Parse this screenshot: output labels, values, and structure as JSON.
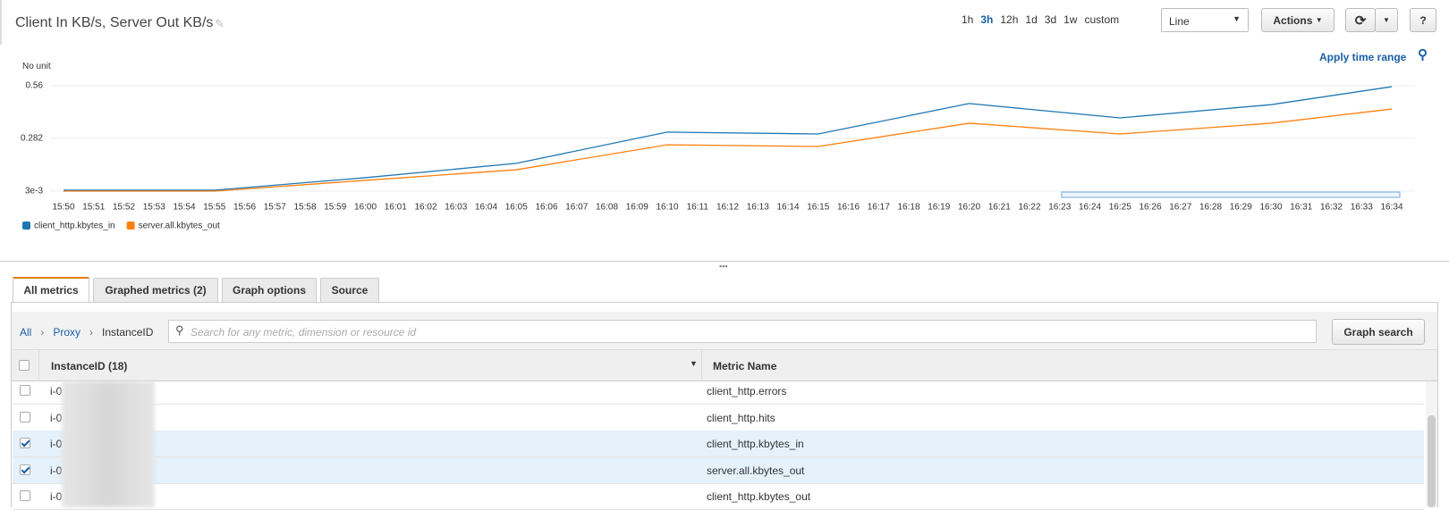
{
  "header": {
    "title": "Client In KB/s, Server Out KB/s",
    "ranges": [
      "1h",
      "3h",
      "12h",
      "1d",
      "3d",
      "1w",
      "custom"
    ],
    "active_range": 1,
    "view": "Line",
    "actions": "Actions",
    "help": "?"
  },
  "chart_data": {
    "type": "line",
    "ylabel": "No unit",
    "apply": "Apply time range",
    "categories": [
      "15:50",
      "15:51",
      "15:52",
      "15:53",
      "15:54",
      "15:55",
      "15:56",
      "15:57",
      "15:58",
      "15:59",
      "16:00",
      "16:01",
      "16:02",
      "16:03",
      "16:04",
      "16:05",
      "16:06",
      "16:07",
      "16:08",
      "16:09",
      "16:10",
      "16:11",
      "16:12",
      "16:13",
      "16:14",
      "16:15",
      "16:16",
      "16:17",
      "16:18",
      "16:19",
      "16:20",
      "16:21",
      "16:22",
      "16:23",
      "16:24",
      "16:25",
      "16:26",
      "16:27",
      "16:28",
      "16:29",
      "16:30",
      "16:31",
      "16:32",
      "16:33",
      "16:34"
    ],
    "x": [
      "15:50",
      "15:55",
      "16:00",
      "16:05",
      "16:10",
      "16:15",
      "16:20",
      "16:25",
      "16:30",
      "16:34"
    ],
    "series": [
      {
        "name": "client_http.kbytes_in",
        "color": "#1f77b4",
        "values": [
          0.008,
          0.008,
          0.074,
          0.15,
          0.315,
          0.305,
          0.466,
          0.39,
          0.46,
          0.555
        ]
      },
      {
        "name": "server.all.kbytes_out",
        "color": "#ff7f0e",
        "values": [
          0.003,
          0.003,
          0.06,
          0.116,
          0.248,
          0.239,
          0.362,
          0.305,
          0.362,
          0.437
        ]
      }
    ],
    "ylim": [
      0.003,
      0.56
    ],
    "yticks": [
      {
        "value": 0.003,
        "label": "3e-3"
      },
      0.282,
      0.56
    ],
    "grid": true
  },
  "tabs": [
    "All metrics",
    "Graphed metrics (2)",
    "Graph options",
    "Source"
  ],
  "breadcrumb": [
    "All",
    "Proxy",
    "InstanceID"
  ],
  "search_placeholder": "Search for any metric, dimension or resource id",
  "graph_search": "Graph search",
  "table": {
    "columns": [
      "InstanceID (18)",
      "Metric Name"
    ],
    "rows": [
      {
        "id": "i-0",
        "metric": "client_http.errors",
        "checked": false
      },
      {
        "id": "i-0",
        "metric": "client_http.hits",
        "checked": false
      },
      {
        "id": "i-0",
        "metric": "client_http.kbytes_in",
        "checked": true
      },
      {
        "id": "i-0",
        "metric": "server.all.kbytes_out",
        "checked": true
      },
      {
        "id": "i-0",
        "metric": "client_http.kbytes_out",
        "checked": false
      }
    ]
  }
}
